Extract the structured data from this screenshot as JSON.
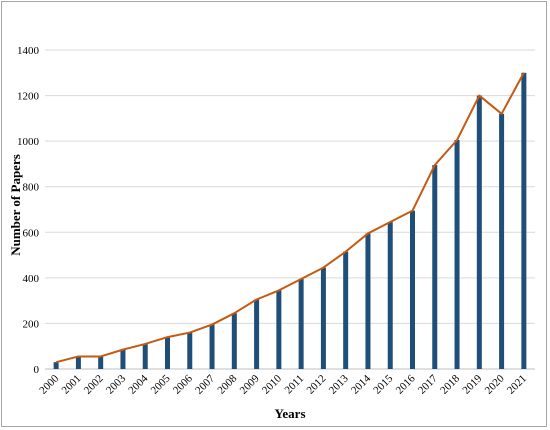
{
  "chart_data": {
    "type": "bar",
    "title": "",
    "xlabel": "Years",
    "ylabel": "Number of Papers",
    "ylim": [
      0,
      1400
    ],
    "yticks": [
      0,
      200,
      400,
      600,
      800,
      1000,
      1200,
      1400
    ],
    "grid": true,
    "legend": "none",
    "categories": [
      "2000",
      "2001",
      "2002",
      "2003",
      "2004",
      "2005",
      "2006",
      "2007",
      "2008",
      "2009",
      "2010",
      "2011",
      "2012",
      "2013",
      "2014",
      "2015",
      "2016",
      "2017",
      "2018",
      "2019",
      "2020",
      "2021"
    ],
    "series": [
      {
        "type": "bar",
        "color": "#1f4e79",
        "values": [
          30,
          55,
          55,
          85,
          110,
          140,
          160,
          195,
          245,
          305,
          345,
          395,
          445,
          515,
          595,
          645,
          695,
          895,
          1005,
          1200,
          1120,
          1300
        ]
      },
      {
        "type": "line",
        "color": "#c55a11",
        "values": [
          30,
          55,
          55,
          85,
          110,
          140,
          160,
          195,
          245,
          305,
          345,
          395,
          445,
          515,
          595,
          645,
          695,
          895,
          1005,
          1200,
          1120,
          1300
        ]
      }
    ]
  }
}
